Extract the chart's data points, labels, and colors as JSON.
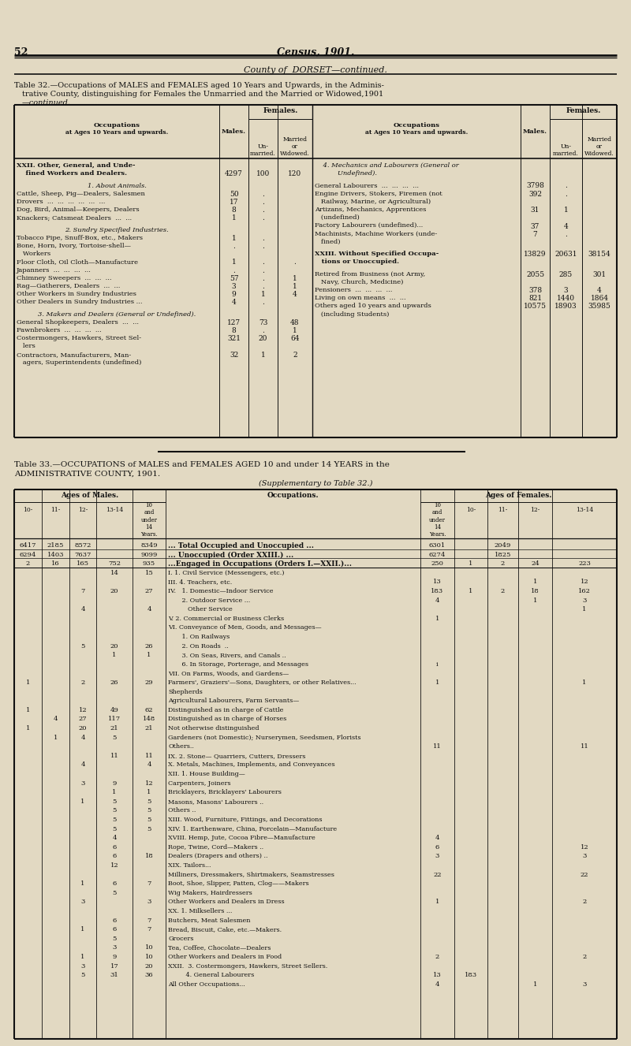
{
  "page_num": "52",
  "main_title": "Census, 1901.",
  "subtitle": "County of  DORSET—continued.",
  "bg_color": "#e2d9c2",
  "t32_left": [
    [
      "XXII. Other, General, and Unde-",
      "",
      "",
      "",
      "bold"
    ],
    [
      "    fined Workers and Dealers.",
      "4297",
      "100",
      "120",
      "bold"
    ],
    [
      "",
      "",
      "",
      "",
      ""
    ],
    [
      "    1. About Animals.",
      "",
      "",
      "",
      "italic_center"
    ],
    [
      "Cattle, Sheep, Pig—Dealers, Salesmen",
      "50",
      ".",
      "",
      "normal"
    ],
    [
      "Drovers  ...  ...  ...  ...  ...  ...",
      "17",
      ".",
      "",
      "normal"
    ],
    [
      "Dog, Bird, Animal—Keepers, Dealers",
      "8",
      ".",
      "",
      "normal"
    ],
    [
      "Knackers; Catsmeat Dealers  ...  ...",
      "1",
      ".",
      "",
      "normal"
    ],
    [
      "",
      "",
      "",
      "",
      ""
    ],
    [
      "    2. Sundry Specified Industries.",
      "",
      "",
      "",
      "italic_center"
    ],
    [
      "Tobacco Pipe, Snuff-Box, etc., Makers",
      "1",
      ".",
      "",
      "normal"
    ],
    [
      "Bone, Horn, Ivory, Tortoise-shell—",
      ".",
      ".",
      "",
      "normal"
    ],
    [
      "   Workers",
      "",
      "",
      "",
      "normal"
    ],
    [
      "Floor Cloth, Oil Cloth—Manufacture",
      "1",
      ".",
      ".",
      "normal"
    ],
    [
      "Japanners  ...  ...  ...  ...",
      ".",
      ".",
      "",
      "normal"
    ],
    [
      "Chimney Sweepers  ...  ...  ...",
      "57",
      ".",
      "1",
      "normal"
    ],
    [
      "Rag—Gatherers, Dealers  ...  ...",
      "3",
      ".",
      "1",
      "normal"
    ],
    [
      "Other Workers in Sundry Industries",
      "9",
      "1",
      "4",
      "normal"
    ],
    [
      "Other Dealers in Sundry Industries ...",
      "4",
      ".",
      "",
      "normal"
    ],
    [
      "",
      "",
      "",
      "",
      ""
    ],
    [
      "    3. Makers and Dealers (General or Undefined).",
      "",
      "",
      "",
      "italic_center"
    ],
    [
      "General Shopkeepers, Dealers  ...  ...",
      "127",
      "73",
      "48",
      "normal"
    ],
    [
      "Pawnbrokers  ...  ...  ...  ...",
      "8",
      ".",
      "1",
      "normal"
    ],
    [
      "Costermongers, Hawkers, Street Sel-",
      "321",
      "20",
      "64",
      "normal"
    ],
    [
      "   lers",
      "",
      "",
      "",
      "normal"
    ],
    [
      "Contractors, Manufacturers, Man-",
      "32",
      "1",
      "2",
      "normal"
    ],
    [
      "   agers, Superintendents (undefined)",
      "",
      "",
      "",
      "normal"
    ]
  ],
  "t32_right": [
    [
      "    4. Mechanics and Labourers (General or",
      "",
      "",
      "",
      "italic"
    ],
    [
      "           Undefined).",
      "",
      "",
      "",
      "italic"
    ],
    [
      "",
      "",
      "",
      "",
      ""
    ],
    [
      "General Labourers  ...  ...  ...  ...",
      "3798",
      ".",
      "",
      "normal"
    ],
    [
      "Engine Drivers, Stokers, Firemen (not",
      "392",
      ".",
      "",
      "normal"
    ],
    [
      "   Railway, Marine, or Agricultural)",
      "",
      "",
      "",
      "normal"
    ],
    [
      "Artizans, Mechanics, Apprentices",
      "31",
      "1",
      "",
      "normal"
    ],
    [
      "   (undefined)",
      "",
      "",
      "",
      "normal"
    ],
    [
      "Factory Labourers (undefined)...",
      "37",
      "4",
      "",
      "normal"
    ],
    [
      "Machinists, Machine Workers (unde-",
      "7",
      ".",
      "",
      "normal"
    ],
    [
      "   fined)",
      "",
      "",
      "",
      "normal"
    ],
    [
      "",
      "",
      "",
      "",
      ""
    ],
    [
      "XXIII. Without Specified Occupa-",
      "13829",
      "20631",
      "38154",
      "bold"
    ],
    [
      "   tions or Unoccupied.",
      "",
      "",
      "",
      "bold"
    ],
    [
      "",
      "",
      "",
      "",
      ""
    ],
    [
      "Retired from Business (not Army,",
      "2055",
      "285",
      "301",
      "normal"
    ],
    [
      "   Navy, Church, Medicine)",
      "",
      "",
      "",
      "normal"
    ],
    [
      "Pensioners  ...  ...  ...  ...",
      "378",
      "3",
      "4",
      "normal"
    ],
    [
      "Living on own means  ...  ...",
      "821",
      "1440",
      "1864",
      "normal"
    ],
    [
      "Others aged 10 years and upwards",
      "10575",
      "18903",
      "35985",
      "normal"
    ],
    [
      "   (including Students)",
      "",
      "",
      "",
      "normal"
    ]
  ],
  "t33_rows": [
    [
      "... Total Occupied and Unoccupied ...",
      "6417",
      "2185",
      "8572",
      "",
      "8349",
      "6301",
      "",
      "2049",
      "",
      ""
    ],
    [
      "... Unoccupied (Order XXIII.) ...",
      "6294",
      "1403",
      "7637",
      "",
      "9099",
      "6274",
      "",
      "1825",
      "",
      ""
    ],
    [
      "...Engaged in Occupations (Orders I.—XXII.)...",
      "2",
      "16",
      "165",
      "752",
      "935",
      "250",
      "1",
      "2",
      "24",
      "223"
    ],
    [
      "I. 1. Civil Service (Messengers, etc.)",
      "",
      "",
      "",
      "14",
      "15",
      "",
      "",
      "",
      "",
      ""
    ],
    [
      "III. 4. Teachers, etc.",
      "",
      "",
      "",
      "",
      "",
      "13",
      "",
      "",
      "1",
      "12"
    ],
    [
      "IV.   1. Domestic—Indoor Service",
      "",
      "",
      "7",
      "20",
      "27",
      "183",
      "1",
      "2",
      "18",
      "162"
    ],
    [
      "       2. Outdoor Service ...",
      "",
      "",
      "",
      "",
      "",
      "4",
      "",
      "",
      "1",
      "3"
    ],
    [
      "          Other Service",
      "",
      "",
      "4",
      "",
      "4",
      "",
      "",
      "",
      "",
      "1"
    ],
    [
      "V. 2. Commercial or Business Clerks",
      "",
      "",
      "",
      "",
      "",
      "1",
      "",
      "",
      "",
      ""
    ],
    [
      "VI. Conveyance of Men, Goods, and Messages—",
      "",
      "",
      "",
      "",
      "",
      "",
      "",
      "",
      "",
      ""
    ],
    [
      "       1. On Railways",
      "",
      "",
      "",
      "",
      "",
      "",
      "",
      "",
      "",
      ""
    ],
    [
      "       2. On Roads  ..",
      "",
      "",
      "5",
      "20",
      "26",
      "",
      "",
      "",
      "",
      ""
    ],
    [
      "       3. On Seas, Rivers, and Canals ..",
      "",
      "",
      "",
      "1",
      "1",
      "",
      "",
      "",
      "",
      ""
    ],
    [
      "       6. In Storage, Porterage, and Messages",
      "",
      "",
      "",
      "",
      "",
      "i",
      "",
      "",
      "",
      ""
    ],
    [
      "VII. On Farms, Woods, and Gardens—",
      "",
      "",
      "",
      "",
      "",
      "",
      "",
      "",
      "",
      ""
    ],
    [
      "Farmers', Graziers'—Sons, Daughters, or other Relatives...",
      "1",
      "",
      "2",
      "26",
      "29",
      "1",
      "",
      "",
      "",
      "1"
    ],
    [
      "Shepherds",
      "",
      "",
      "",
      "",
      "",
      "",
      "",
      "",
      "",
      ""
    ],
    [
      "Agricultural Labourers, Farm Servants—",
      "",
      "",
      "",
      "",
      "",
      "",
      "",
      "",
      "",
      ""
    ],
    [
      "Distinguished as in charge of Cattle",
      "1",
      "",
      "12",
      "49",
      "62",
      "",
      "",
      "",
      "",
      ""
    ],
    [
      "Distinguished as in charge of Horses",
      "",
      "4",
      "27",
      "117",
      "148",
      "",
      "",
      "",
      "",
      ""
    ],
    [
      "Not otherwise distinguished",
      "1",
      "",
      "20",
      "21",
      "21",
      "",
      "",
      "",
      "",
      ""
    ],
    [
      "Gardeners (not Domestic); Nurserymen, Seedsmen, Florists",
      "",
      "1",
      "4",
      "5",
      "",
      "",
      "",
      "",
      "",
      ""
    ],
    [
      "Others..",
      "",
      "",
      "",
      "",
      "",
      "11",
      "",
      "",
      "",
      "11"
    ],
    [
      "IX. 2. Stone— Quarriers, Cutters, Dressers",
      "",
      "",
      "",
      "11",
      "11",
      "",
      "",
      "",
      "",
      ""
    ],
    [
      "X. Metals, Machines, Implements, and Conveyances",
      "",
      "",
      "4",
      "",
      "4",
      "",
      "",
      "",
      "",
      ""
    ],
    [
      "XII. 1. House Building—",
      "",
      "",
      "",
      "",
      "",
      "",
      "",
      "",
      "",
      ""
    ],
    [
      "Carpenters, Joiners",
      "",
      "",
      "3",
      "9",
      "12",
      "",
      "",
      "",
      "",
      ""
    ],
    [
      "Bricklayers, Bricklayers' Labourers",
      "",
      "",
      "",
      "1",
      "1",
      "",
      "",
      "",
      "",
      ""
    ],
    [
      "Masons, Masons' Labourers ..",
      "",
      "",
      "1",
      "5",
      "5",
      "",
      "",
      "",
      "",
      ""
    ],
    [
      "Others ..",
      "",
      "",
      "",
      "5",
      "5",
      "",
      "",
      "",
      "",
      ""
    ],
    [
      "XIII. Wood, Furniture, Fittings, and Decorations",
      "",
      "",
      "",
      "5",
      "5",
      "",
      "",
      "",
      "",
      ""
    ],
    [
      "XIV. 1. Earthenware, China, Porcelain—Manufacture",
      "",
      "",
      "",
      "5",
      "5",
      "",
      "",
      "",
      "",
      ""
    ],
    [
      "XVIII. Hemp, Jute, Cocoa Fibre—Manufacture",
      "",
      "",
      "",
      "4",
      "",
      "4",
      "",
      "",
      "",
      ""
    ],
    [
      "Rope, Twine, Cord—Makers ..",
      "",
      "",
      "",
      "6",
      "",
      "6",
      "",
      "",
      "",
      "12"
    ],
    [
      "Dealers (Drapers and others) ..",
      "",
      "",
      "",
      "6",
      "18",
      "3",
      "",
      "",
      "",
      "3"
    ],
    [
      "XIX. Tailors...",
      "",
      "",
      "",
      "12",
      "",
      "",
      "",
      "",
      "",
      ""
    ],
    [
      "Milliners, Dressmakers, Shirtmakers, Seamstresses",
      "",
      "",
      "",
      "",
      "",
      "22",
      "",
      "",
      "",
      "22"
    ],
    [
      "Boot, Shoe, Slipper, Patten, Clog——Makers",
      "",
      "",
      "1",
      "6",
      "7",
      "",
      "",
      "",
      "",
      ""
    ],
    [
      "Wig Makers, Hairdressers",
      "",
      "",
      "",
      "5",
      "",
      "",
      "",
      "",
      "",
      ""
    ],
    [
      "Other Workers and Dealers in Dress",
      "",
      "",
      "3",
      "",
      "3",
      "1",
      "",
      "",
      "",
      "2"
    ],
    [
      "XX. 1. Milksellers ...",
      "",
      "",
      "",
      "",
      "",
      "",
      "",
      "",
      "",
      ""
    ],
    [
      "Butchers, Meat Salesmen",
      "",
      "",
      "",
      "6",
      "7",
      "",
      "",
      "",
      "",
      ""
    ],
    [
      "Bread, Biscuit, Cake, etc.—Makers.",
      "",
      "",
      "1",
      "6",
      "7",
      "",
      "",
      "",
      "",
      ""
    ],
    [
      "Grocers",
      "",
      "",
      "",
      "5",
      "",
      "",
      "",
      "",
      "",
      ""
    ],
    [
      "Tea, Coffee, Chocolate—Dealers",
      "",
      "",
      "",
      "3",
      "10",
      "",
      "",
      "",
      "",
      ""
    ],
    [
      "Other Workers and Dealers in Food",
      "",
      "",
      "1",
      "9",
      "10",
      "2",
      "",
      "",
      "",
      "2"
    ],
    [
      "XXII.  3. Costermongers, Hawkers, Street Sellers.",
      "",
      "",
      "3",
      "17",
      "20",
      "",
      "",
      "",
      "",
      ""
    ],
    [
      "         4. General Labourers",
      "",
      "",
      "5",
      "31",
      "36",
      "13",
      "183",
      "",
      "",
      ""
    ],
    [
      "All Other Occupations...",
      "",
      "",
      "",
      "",
      "",
      "4",
      "",
      "",
      "1",
      "3"
    ]
  ]
}
